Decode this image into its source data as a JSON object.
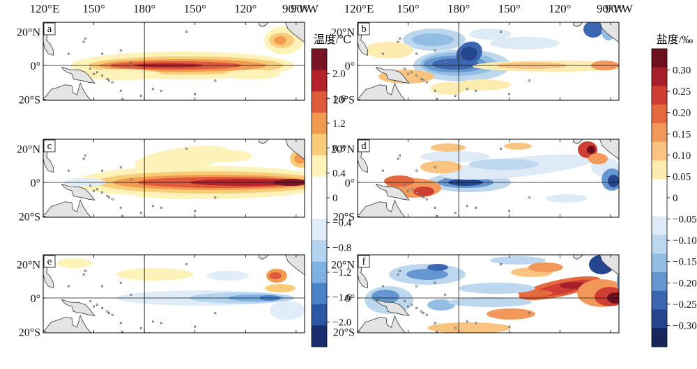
{
  "figure": {
    "lon_labels": [
      "120°E",
      "150°",
      "180°",
      "150°",
      "120°",
      "90°W"
    ],
    "lat_labels": [
      "20°N",
      "0°",
      "20°S"
    ],
    "panels": [
      {
        "label": "a",
        "variable": "temperature"
      },
      {
        "label": "b",
        "variable": "salinity"
      },
      {
        "label": "c",
        "variable": "temperature"
      },
      {
        "label": "d",
        "variable": "salinity"
      },
      {
        "label": "e",
        "variable": "temperature"
      },
      {
        "label": "f",
        "variable": "salinity"
      }
    ]
  },
  "temp_colorbar": {
    "title": "温度/℃",
    "ticks": [
      "2.0",
      "1.6",
      "1.2",
      "0.8",
      "0.4",
      "0",
      "−0.4",
      "−0.8",
      "−1.2",
      "−1.6",
      "−2.0"
    ],
    "colors": [
      "#7a1323",
      "#b5222c",
      "#de5a3a",
      "#f29a4f",
      "#f9cc79",
      "#fdf2b8",
      "#ffffff",
      "#ffffff",
      "#e0edf8",
      "#b3d3ef",
      "#7fb2e2",
      "#4a83c8",
      "#2c57a7",
      "#1a2d6e"
    ]
  },
  "salt_colorbar": {
    "title": "盐度/‰",
    "ticks": [
      "0.30",
      "0.25",
      "0.20",
      "0.15",
      "0.10",
      "0.05",
      "0",
      "−0.05",
      "−0.10",
      "−0.15",
      "−0.20",
      "−0.25",
      "−0.30"
    ],
    "colors": [
      "#6d0f1f",
      "#a61e2a",
      "#cf3e33",
      "#e4693f",
      "#f2985a",
      "#f8c480",
      "#fdecb0",
      "#ffffff",
      "#ffffff",
      "#deeaf6",
      "#bdd7ee",
      "#94bde4",
      "#6596cf",
      "#3c67b0",
      "#25458f",
      "#16265d"
    ]
  },
  "colors": {
    "land": "#e4e4e4",
    "coast": "#333333",
    "grid": "#111111"
  }
}
